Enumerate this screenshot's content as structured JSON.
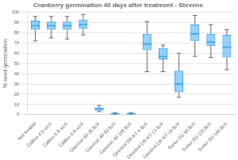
{
  "chart_data": {
    "type": "box",
    "title": "Cranberry germination 40 days after treatment - Stevens",
    "ylabel": "% seed germination",
    "categories": [
      "Not treated",
      "Caliloo 4.8 oz/A",
      "Caliloo 6 fl oz/A",
      "Caliloo 8 fl oz/A",
      "Casoron 40 25 lb/A",
      "Casoron 40 50 lb/A",
      "Casoron 40 100 lb/A",
      "Devrinol DR-KT 6 lb/A",
      "Devrinol DR-KT 13 lb/A",
      "Devrinol DR-KT 18 lb/A",
      "Surtur 5G 80 lb/A",
      "Surtur 5G 120 lb/A",
      "Surtur 5G 160 lb/A"
    ],
    "boxes": [
      {
        "q1": 83,
        "median": 87,
        "q3": 92,
        "whislo": 72,
        "whishi": 96
      },
      {
        "q1": 83,
        "median": 87,
        "q3": 91,
        "whislo": 75,
        "whishi": 96
      },
      {
        "q1": 83,
        "median": 87,
        "q3": 91,
        "whislo": 74,
        "whishi": 96
      },
      {
        "q1": 84,
        "median": 88,
        "q3": 93,
        "whislo": 78,
        "whishi": 98
      },
      {
        "q1": 4,
        "median": 6,
        "q3": 7,
        "whislo": 3,
        "whishi": 9
      },
      {
        "q1": 0,
        "median": 1,
        "q3": 1,
        "whislo": 0,
        "whishi": 2
      },
      {
        "q1": 0,
        "median": 1,
        "q3": 1,
        "whislo": 0,
        "whishi": 2
      },
      {
        "q1": 63,
        "median": 69,
        "q3": 79,
        "whislo": 42,
        "whishi": 91
      },
      {
        "q1": 54,
        "median": 57,
        "q3": 65,
        "whislo": 42,
        "whishi": 68
      },
      {
        "q1": 22,
        "median": 30,
        "q3": 43,
        "whislo": 17,
        "whishi": 60
      },
      {
        "q1": 72,
        "median": 79,
        "q3": 88,
        "whislo": 57,
        "whishi": 97
      },
      {
        "q1": 67,
        "median": 71,
        "q3": 79,
        "whislo": 56,
        "whishi": 88
      },
      {
        "q1": 56,
        "median": 66,
        "q3": 78,
        "whislo": 44,
        "whishi": 83
      }
    ],
    "ylim": [
      0,
      100
    ],
    "yticks": [
      0,
      10,
      20,
      30,
      40,
      50,
      60,
      70,
      80,
      90,
      100
    ],
    "grid": "y"
  }
}
